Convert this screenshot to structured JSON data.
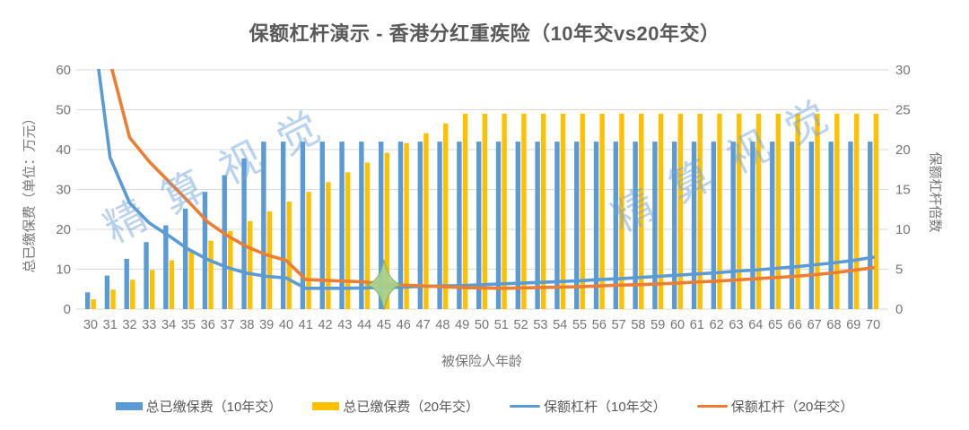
{
  "title": "保额杠杆演示 - 香港分红重疾险（10年交vs20年交）",
  "watermark": {
    "text": "精算视觉",
    "color": "#6FA3DC"
  },
  "chart_data": {
    "type": "bar",
    "subtype": "combo-bar-line-dual-axis",
    "title": "保额杠杆演示 - 香港分红重疾险（10年交vs20年交）",
    "xlabel": "被保险人年龄",
    "y_left_label": "总已缴保费（单位：万元）",
    "y_right_label": "保额杠杆倍数",
    "y_left_ticks": [
      0,
      10,
      20,
      30,
      40,
      50,
      60
    ],
    "y_right_ticks": [
      0,
      5,
      10,
      15,
      20,
      25,
      30
    ],
    "y_left_range": [
      0,
      60
    ],
    "y_right_range": [
      0,
      30
    ],
    "grid": "horizontal",
    "legend_position": "bottom",
    "categories": [
      30,
      31,
      32,
      33,
      34,
      35,
      36,
      37,
      38,
      39,
      40,
      41,
      42,
      43,
      44,
      45,
      46,
      47,
      48,
      49,
      50,
      51,
      52,
      53,
      54,
      55,
      56,
      57,
      58,
      59,
      60,
      61,
      62,
      63,
      64,
      65,
      66,
      67,
      68,
      69,
      70
    ],
    "series": [
      {
        "name": "总已缴保费（10年交）",
        "type": "bar",
        "axis": "left",
        "color": "#5B9BD5",
        "values": [
          4.2,
          8.4,
          12.6,
          16.8,
          21,
          25.2,
          29.4,
          33.6,
          37.8,
          42,
          42,
          42,
          42,
          42,
          42,
          42,
          42,
          42,
          42,
          42,
          42,
          42,
          42,
          42,
          42,
          42,
          42,
          42,
          42,
          42,
          42,
          42,
          42,
          42,
          42,
          42,
          42,
          42,
          42,
          42,
          42
        ]
      },
      {
        "name": "总已缴保费（20年交）",
        "type": "bar",
        "axis": "left",
        "color": "#FFC000",
        "values": [
          2.45,
          4.9,
          7.35,
          9.8,
          12.25,
          14.7,
          17.15,
          19.6,
          22.05,
          24.5,
          26.95,
          29.4,
          31.85,
          34.3,
          36.75,
          39.2,
          41.65,
          44.1,
          46.55,
          49,
          49,
          49,
          49,
          49,
          49,
          49,
          49,
          49,
          49,
          49,
          49,
          49,
          49,
          49,
          49,
          49,
          49,
          49,
          49,
          49,
          49
        ]
      },
      {
        "name": "保额杠杆（10年交）",
        "type": "line",
        "axis": "right",
        "color": "#5B9BD5",
        "values": [
          38,
          19,
          13.3,
          10.8,
          9.2,
          7.5,
          6.2,
          5.2,
          4.5,
          4.1,
          3.9,
          2.6,
          2.6,
          2.6,
          2.65,
          2.7,
          2.75,
          2.85,
          2.9,
          2.95,
          3.05,
          3.15,
          3.25,
          3.35,
          3.45,
          3.55,
          3.7,
          3.8,
          3.95,
          4.1,
          4.25,
          4.4,
          4.55,
          4.75,
          4.9,
          5.1,
          5.3,
          5.55,
          5.8,
          6.1,
          6.5
        ]
      },
      {
        "name": "保额杠杆（20年交）",
        "type": "line",
        "axis": "right",
        "color": "#ED7D31",
        "values": [
          65,
          31,
          21.5,
          18.5,
          16,
          13.5,
          10.9,
          9.2,
          7.8,
          6.8,
          6.1,
          3.7,
          3.6,
          3.5,
          3.4,
          3.15,
          3.0,
          2.9,
          2.8,
          2.7,
          2.65,
          2.6,
          2.65,
          2.7,
          2.75,
          2.8,
          2.9,
          3.0,
          3.05,
          3.15,
          3.25,
          3.4,
          3.5,
          3.65,
          3.8,
          3.95,
          4.1,
          4.3,
          4.55,
          4.85,
          5.2
        ]
      }
    ],
    "annotations": [
      {
        "type": "star-marker",
        "category": 45,
        "value_right_axis": 3.05,
        "fill": "#A9D18E",
        "stroke": "#7DAF5B"
      }
    ]
  },
  "colors": {
    "grid": "#D9D9D9",
    "axis_text": "#757575",
    "title_text": "#595959"
  }
}
